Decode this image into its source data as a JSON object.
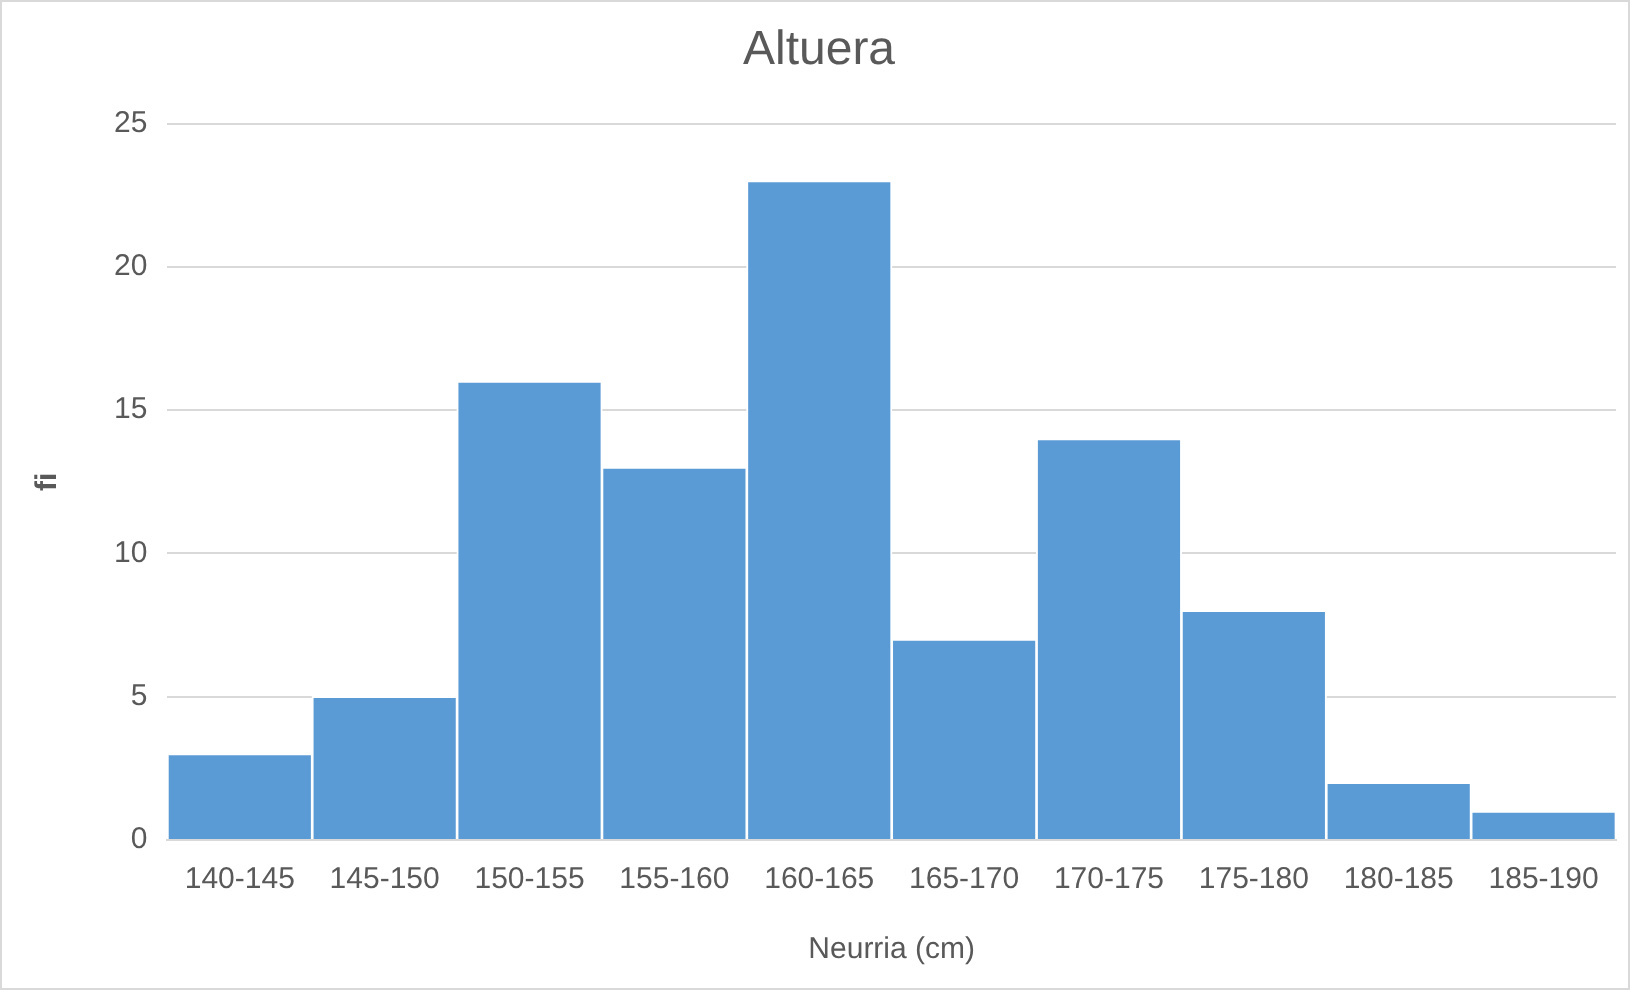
{
  "chart_data": {
    "type": "bar",
    "title": "Altuera",
    "xlabel": "Neurria (cm)",
    "ylabel": "fi",
    "categories": [
      "140-145",
      "145-150",
      "150-155",
      "155-160",
      "160-165",
      "165-170",
      "170-175",
      "175-180",
      "180-185",
      "185-190"
    ],
    "values": [
      3,
      5,
      16,
      13,
      23,
      7,
      14,
      8,
      2,
      1
    ],
    "color": "#5b9bd5",
    "ylim": [
      0,
      25
    ],
    "yticks": [
      0,
      5,
      10,
      15,
      20,
      25
    ],
    "grid": "y"
  }
}
